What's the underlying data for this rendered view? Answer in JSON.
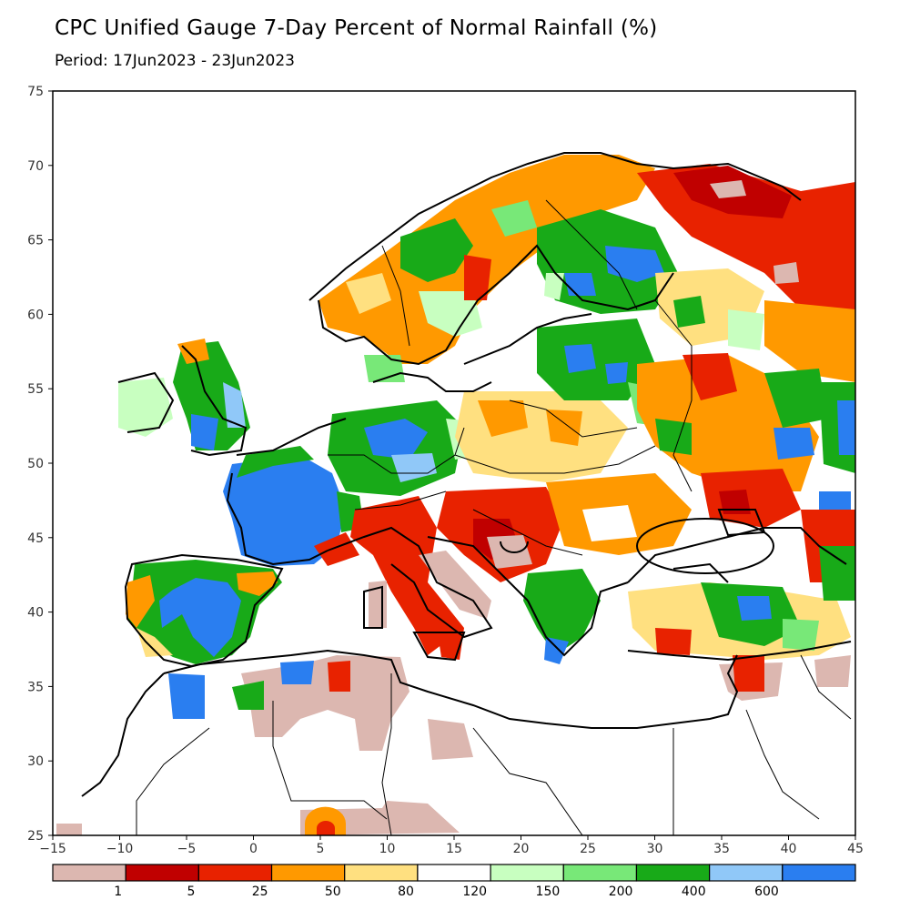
{
  "title": "CPC Unified Gauge 7-Day Percent of Normal Rainfall (%)",
  "period": "Period: 17Jun2023 - 23Jun2023",
  "map": {
    "lon_range": [
      -15,
      45
    ],
    "lat_range": [
      25,
      75
    ],
    "lon_ticks": [
      -15,
      -10,
      -5,
      0,
      5,
      10,
      15,
      20,
      25,
      30,
      35,
      40,
      45
    ],
    "lon_tick_labels": [
      "−15",
      "−10",
      "−5",
      "0",
      "5",
      "10",
      "15",
      "20",
      "25",
      "30",
      "35",
      "40",
      "45"
    ],
    "lat_ticks": [
      25,
      30,
      35,
      40,
      45,
      50,
      55,
      60,
      65,
      70,
      75
    ],
    "lat_tick_labels": [
      "25",
      "30",
      "35",
      "40",
      "45",
      "50",
      "55",
      "60",
      "65",
      "70",
      "75"
    ]
  },
  "legend": {
    "colors": [
      "#dcb7b0",
      "#c00000",
      "#e82200",
      "#ff9900",
      "#ffe080",
      "#ffffff",
      "#c8ffc0",
      "#78e878",
      "#18aa18",
      "#90c8f8",
      "#2a7ef0"
    ],
    "labels": [
      "1",
      "5",
      "25",
      "50",
      "80",
      "120",
      "150",
      "200",
      "400",
      "600"
    ]
  }
}
